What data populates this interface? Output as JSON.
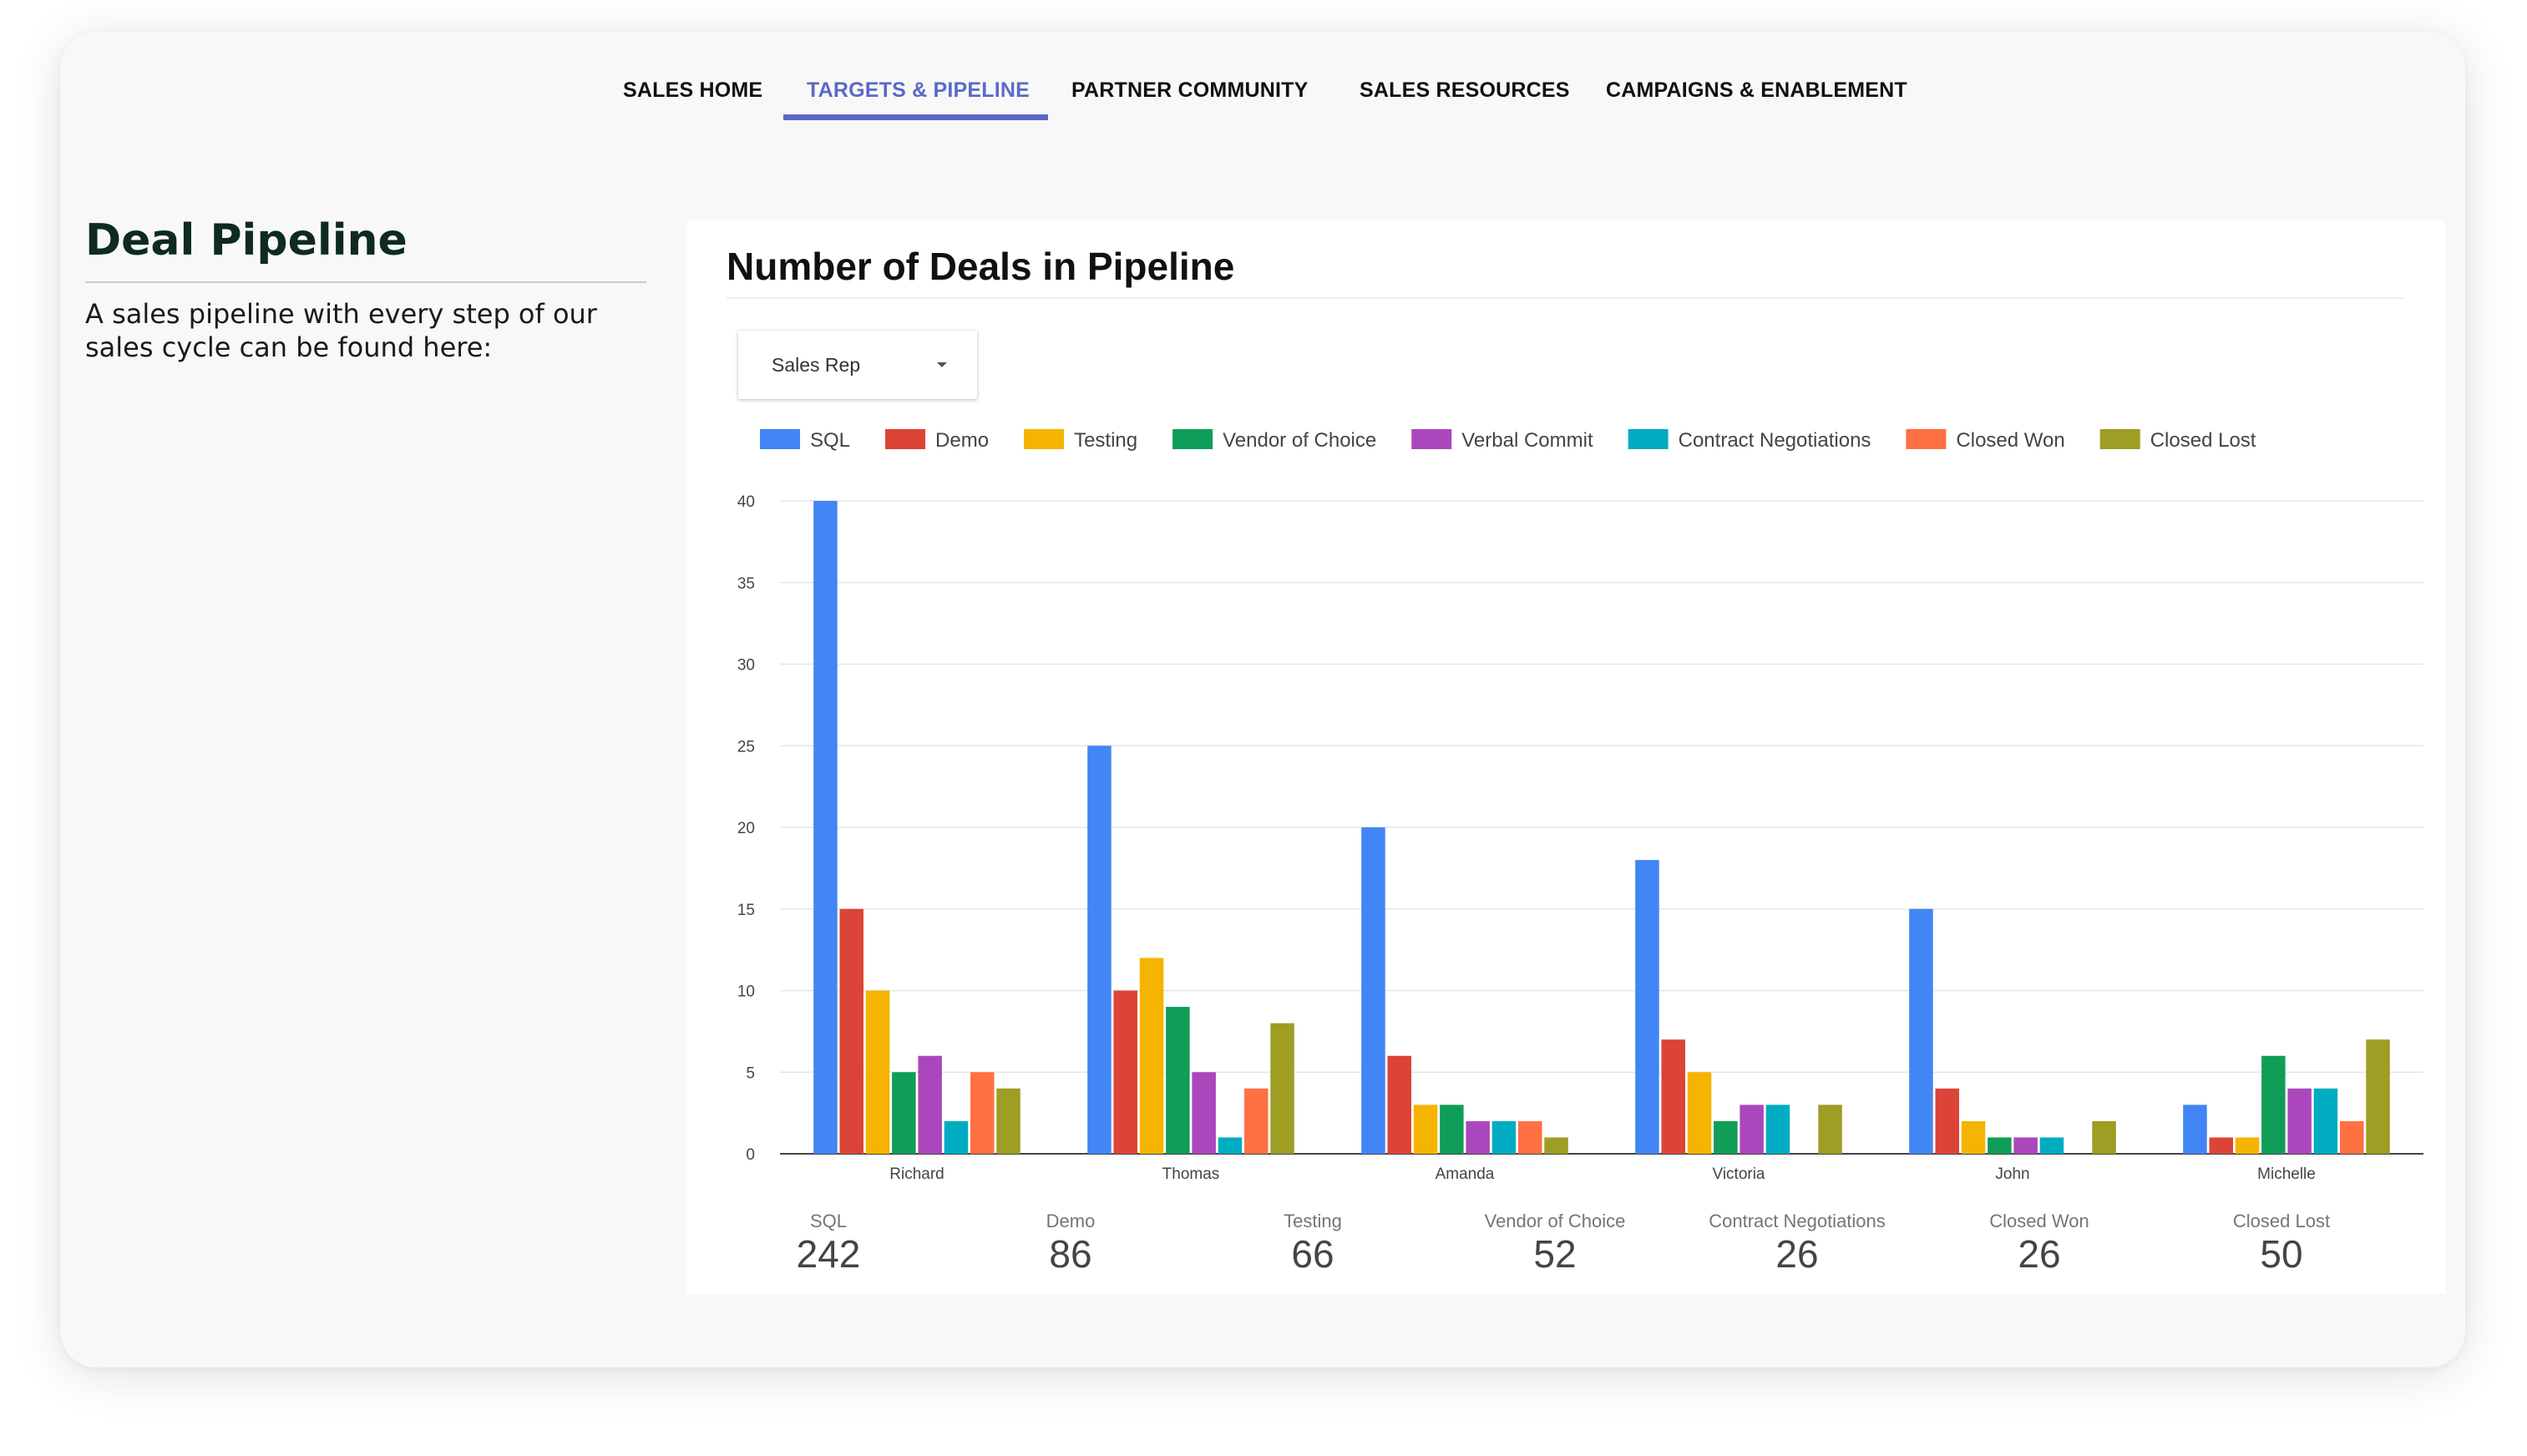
{
  "nav": {
    "tabs": [
      {
        "label": "SALES HOME"
      },
      {
        "label": "TARGETS & PIPELINE",
        "active": true
      },
      {
        "label": "PARTNER COMMUNITY"
      },
      {
        "label": "SALES RESOURCES"
      },
      {
        "label": "CAMPAIGNS & ENABLEMENT"
      }
    ],
    "accent_color": "#5a69c8"
  },
  "sidebar": {
    "title": "Deal Pipeline",
    "description": "A sales pipeline with every step of our sales cycle can be found here:"
  },
  "panel": {
    "title": "Number of Deals in Pipeline",
    "filter": {
      "label": "Sales Rep",
      "icon": "caret-down-icon"
    }
  },
  "chart_data": {
    "type": "bar",
    "title": "",
    "xlabel": "",
    "ylabel": "",
    "ylim": [
      0,
      40
    ],
    "yticks": [
      0,
      5,
      10,
      15,
      20,
      25,
      30,
      35,
      40
    ],
    "grid": true,
    "legend_position": "top",
    "categories": [
      "Richard",
      "Thomas",
      "Amanda",
      "Victoria",
      "John",
      "Michelle"
    ],
    "series": [
      {
        "name": "SQL",
        "color": "#4285f4",
        "values": [
          40,
          25,
          20,
          18,
          15,
          3
        ]
      },
      {
        "name": "Demo",
        "color": "#db4437",
        "values": [
          15,
          10,
          6,
          7,
          4,
          1
        ]
      },
      {
        "name": "Testing",
        "color": "#f4b400",
        "values": [
          10,
          12,
          3,
          5,
          2,
          1
        ]
      },
      {
        "name": "Vendor of Choice",
        "color": "#0f9d58",
        "values": [
          5,
          9,
          3,
          2,
          1,
          6
        ]
      },
      {
        "name": "Verbal Commit",
        "color": "#ab47bc",
        "values": [
          6,
          5,
          2,
          3,
          1,
          4
        ]
      },
      {
        "name": "Contract Negotiations",
        "color": "#00acc1",
        "values": [
          2,
          1,
          2,
          3,
          1,
          4
        ]
      },
      {
        "name": "Closed Won",
        "color": "#ff7043",
        "values": [
          5,
          4,
          2,
          0,
          0,
          2
        ]
      },
      {
        "name": "Closed Lost",
        "color": "#9e9d24",
        "values": [
          4,
          8,
          1,
          3,
          2,
          7
        ]
      }
    ]
  },
  "stats": [
    {
      "label": "SQL",
      "value": "242"
    },
    {
      "label": "Demo",
      "value": "86"
    },
    {
      "label": "Testing",
      "value": "66"
    },
    {
      "label": "Vendor of Choice",
      "value": "52"
    },
    {
      "label": "Contract Negotiations",
      "value": "26"
    },
    {
      "label": "Closed Won",
      "value": "26"
    },
    {
      "label": "Closed Lost",
      "value": "50"
    }
  ]
}
